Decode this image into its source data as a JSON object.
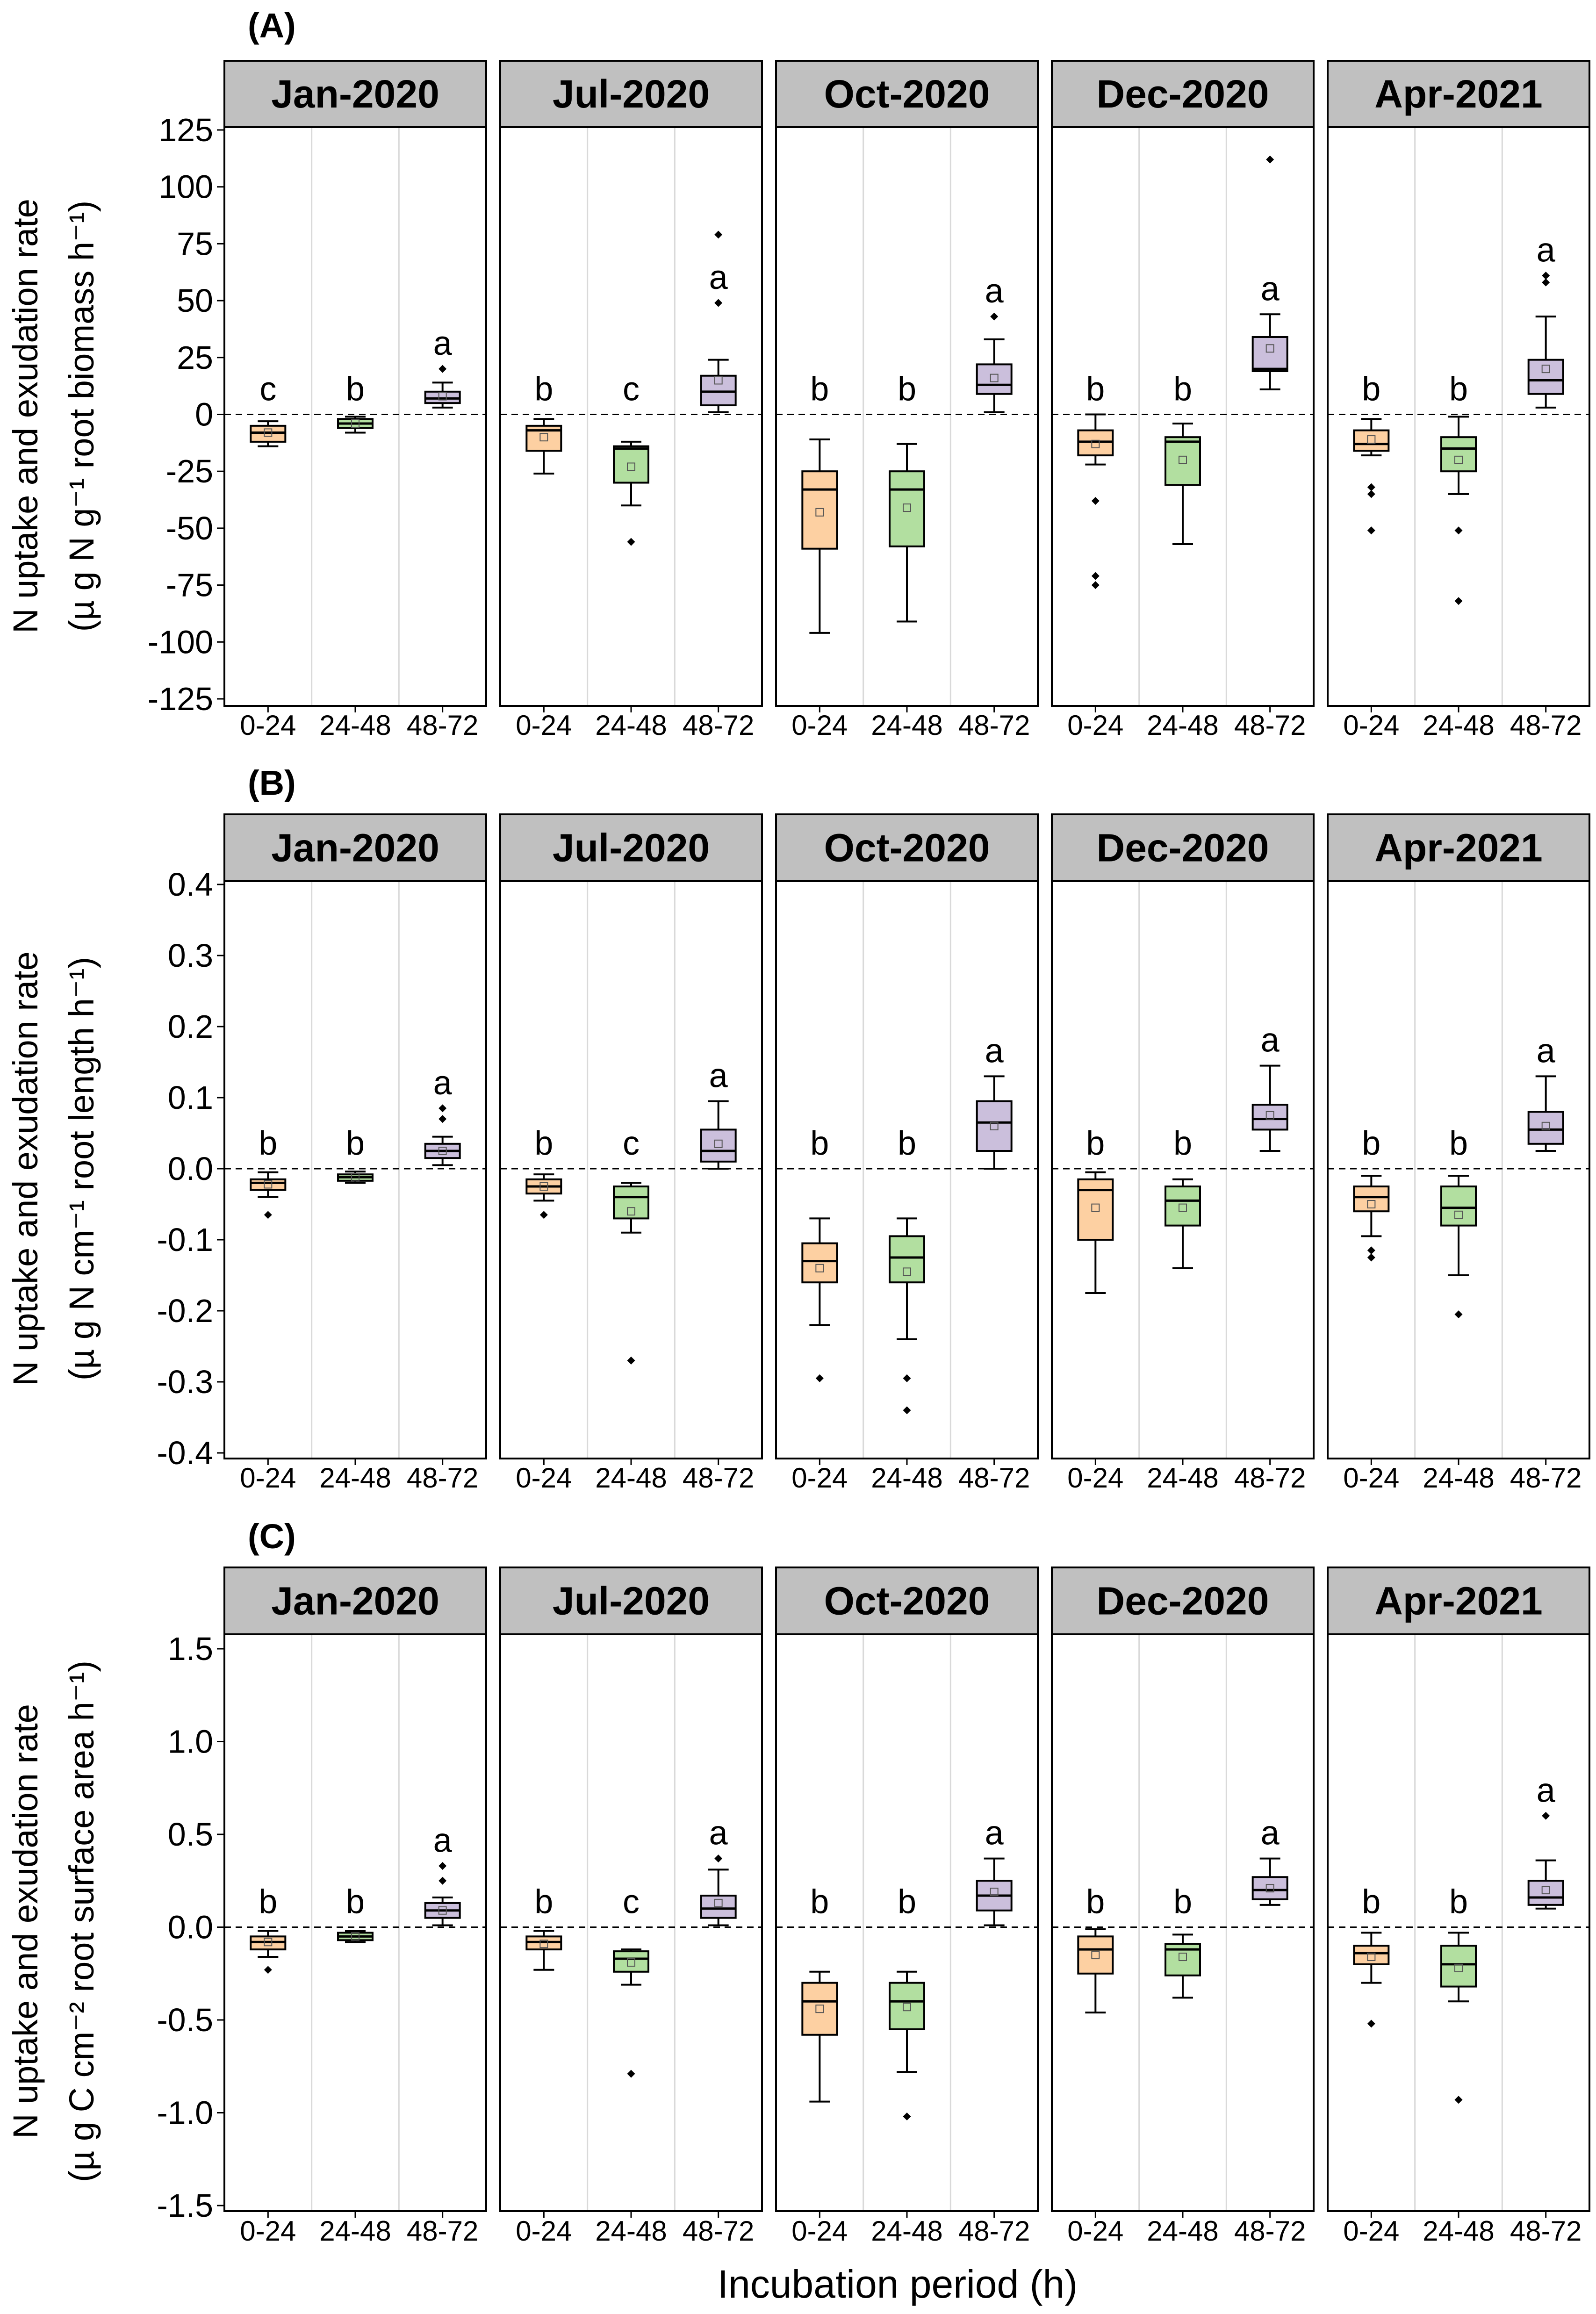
{
  "figure": {
    "x_axis_label": "Incubation period (h)",
    "colors": {
      "0-24": "#fdd0a2",
      "24-48": "#b2dfa0",
      "48-72": "#cbbfdc",
      "strip": "#c0c0c0"
    }
  },
  "chart_data": [
    {
      "type": "boxplot",
      "panel_label": "(A)",
      "ylabel_line1": "N uptake and exudation rate",
      "ylabel_line2": "(µ g N g⁻¹ root biomass h⁻¹)",
      "ylim": [
        -125,
        125
      ],
      "yticks": [
        125,
        100,
        75,
        50,
        25,
        0,
        -25,
        -50,
        -75,
        -100,
        -125
      ],
      "ytick_labels": [
        "125",
        "100",
        "75",
        "50",
        "25",
        "0",
        "-25",
        "-50",
        "-75",
        "-100",
        "-125"
      ],
      "categories": [
        "0-24",
        "24-48",
        "48-72"
      ],
      "facets": [
        {
          "name": "Jan-2020",
          "boxes": [
            {
              "category": "0-24",
              "whisker_low": -14,
              "q1": -12,
              "median": -8,
              "q3": -5,
              "whisker_high": -3,
              "mean": -8,
              "outliers": [],
              "letter": "c"
            },
            {
              "category": "24-48",
              "whisker_low": -8,
              "q1": -6,
              "median": -4,
              "q3": -2,
              "whisker_high": -1,
              "mean": -4,
              "outliers": [],
              "letter": "b"
            },
            {
              "category": "48-72",
              "whisker_low": 3,
              "q1": 5,
              "median": 7,
              "q3": 10,
              "whisker_high": 14,
              "mean": 8,
              "outliers": [
                20
              ],
              "letter": "a"
            }
          ]
        },
        {
          "name": "Jul-2020",
          "boxes": [
            {
              "category": "0-24",
              "whisker_low": -26,
              "q1": -16,
              "median": -7,
              "q3": -5,
              "whisker_high": -2,
              "mean": -10,
              "outliers": [],
              "letter": "b"
            },
            {
              "category": "24-48",
              "whisker_low": -40,
              "q1": -30,
              "median": -15,
              "q3": -14,
              "whisker_high": -12,
              "mean": -23,
              "outliers": [
                -56
              ],
              "letter": "c"
            },
            {
              "category": "48-72",
              "whisker_low": 1,
              "q1": 4,
              "median": 10,
              "q3": 17,
              "whisker_high": 24,
              "mean": 15,
              "outliers": [
                49,
                79
              ],
              "letter": "a"
            }
          ]
        },
        {
          "name": "Oct-2020",
          "boxes": [
            {
              "category": "0-24",
              "whisker_low": -96,
              "q1": -59,
              "median": -33,
              "q3": -25,
              "whisker_high": -11,
              "mean": -43,
              "outliers": [],
              "letter": "b"
            },
            {
              "category": "24-48",
              "whisker_low": -91,
              "q1": -58,
              "median": -33,
              "q3": -25,
              "whisker_high": -13,
              "mean": -41,
              "outliers": [],
              "letter": "b"
            },
            {
              "category": "48-72",
              "whisker_low": 1,
              "q1": 9,
              "median": 13,
              "q3": 22,
              "whisker_high": 33,
              "mean": 16,
              "outliers": [
                43
              ],
              "letter": "a"
            }
          ]
        },
        {
          "name": "Dec-2020",
          "boxes": [
            {
              "category": "0-24",
              "whisker_low": -22,
              "q1": -18,
              "median": -12,
              "q3": -7,
              "whisker_high": 0,
              "mean": -13,
              "outliers": [
                -38,
                -71,
                -75
              ],
              "letter": "b"
            },
            {
              "category": "24-48",
              "whisker_low": -57,
              "q1": -31,
              "median": -12,
              "q3": -10,
              "whisker_high": -4,
              "mean": -20,
              "outliers": [],
              "letter": "b"
            },
            {
              "category": "48-72",
              "whisker_low": 11,
              "q1": 19,
              "median": 20,
              "q3": 34,
              "whisker_high": 44,
              "mean": 29,
              "outliers": [
                112
              ],
              "letter": "a"
            }
          ]
        },
        {
          "name": "Apr-2021",
          "boxes": [
            {
              "category": "0-24",
              "whisker_low": -18,
              "q1": -16,
              "median": -13,
              "q3": -7,
              "whisker_high": -2,
              "mean": -11,
              "outliers": [
                -32,
                -35,
                -51
              ],
              "letter": "b"
            },
            {
              "category": "24-48",
              "whisker_low": -35,
              "q1": -25,
              "median": -15,
              "q3": -10,
              "whisker_high": -1,
              "mean": -20,
              "outliers": [
                -51,
                -82
              ],
              "letter": "b"
            },
            {
              "category": "48-72",
              "whisker_low": 3,
              "q1": 9,
              "median": 15,
              "q3": 24,
              "whisker_high": 43,
              "mean": 20,
              "outliers": [
                58,
                61
              ],
              "letter": "a"
            }
          ]
        }
      ]
    },
    {
      "type": "boxplot",
      "panel_label": "(B)",
      "ylabel_line1": "N uptake and exudation rate",
      "ylabel_line2": "(µ g N cm⁻¹ root length h⁻¹)",
      "ylim": [
        -0.4,
        0.4
      ],
      "yticks": [
        0.4,
        0.3,
        0.2,
        0.1,
        0.0,
        -0.1,
        -0.2,
        -0.3,
        -0.4
      ],
      "ytick_labels": [
        "0.4",
        "0.3",
        "0.2",
        "0.1",
        "0.0",
        "-0.1",
        "-0.2",
        "-0.3",
        "-0.4"
      ],
      "categories": [
        "0-24",
        "24-48",
        "48-72"
      ],
      "facets": [
        {
          "name": "Jan-2020",
          "boxes": [
            {
              "category": "0-24",
              "whisker_low": -0.04,
              "q1": -0.03,
              "median": -0.02,
              "q3": -0.015,
              "whisker_high": -0.005,
              "mean": -0.022,
              "outliers": [
                -0.065
              ],
              "letter": "b"
            },
            {
              "category": "24-48",
              "whisker_low": -0.02,
              "q1": -0.017,
              "median": -0.012,
              "q3": -0.008,
              "whisker_high": -0.004,
              "mean": -0.012,
              "outliers": [],
              "letter": "b"
            },
            {
              "category": "48-72",
              "whisker_low": 0.005,
              "q1": 0.015,
              "median": 0.025,
              "q3": 0.035,
              "whisker_high": 0.045,
              "mean": 0.025,
              "outliers": [
                0.07,
                0.085
              ],
              "letter": "a"
            }
          ]
        },
        {
          "name": "Jul-2020",
          "boxes": [
            {
              "category": "0-24",
              "whisker_low": -0.045,
              "q1": -0.035,
              "median": -0.025,
              "q3": -0.015,
              "whisker_high": -0.008,
              "mean": -0.025,
              "outliers": [
                -0.065
              ],
              "letter": "b"
            },
            {
              "category": "24-48",
              "whisker_low": -0.09,
              "q1": -0.07,
              "median": -0.04,
              "q3": -0.025,
              "whisker_high": -0.02,
              "mean": -0.06,
              "outliers": [
                -0.27
              ],
              "letter": "c"
            },
            {
              "category": "48-72",
              "whisker_low": 0.0,
              "q1": 0.01,
              "median": 0.025,
              "q3": 0.055,
              "whisker_high": 0.095,
              "mean": 0.035,
              "outliers": [],
              "letter": "a"
            }
          ]
        },
        {
          "name": "Oct-2020",
          "boxes": [
            {
              "category": "0-24",
              "whisker_low": -0.22,
              "q1": -0.16,
              "median": -0.13,
              "q3": -0.105,
              "whisker_high": -0.07,
              "mean": -0.14,
              "outliers": [
                -0.295
              ],
              "letter": "b"
            },
            {
              "category": "24-48",
              "whisker_low": -0.24,
              "q1": -0.16,
              "median": -0.125,
              "q3": -0.095,
              "whisker_high": -0.07,
              "mean": -0.145,
              "outliers": [
                -0.295,
                -0.34
              ],
              "letter": "b"
            },
            {
              "category": "48-72",
              "whisker_low": 0.0,
              "q1": 0.025,
              "median": 0.065,
              "q3": 0.095,
              "whisker_high": 0.13,
              "mean": 0.06,
              "outliers": [],
              "letter": "a"
            }
          ]
        },
        {
          "name": "Dec-2020",
          "boxes": [
            {
              "category": "0-24",
              "whisker_low": -0.175,
              "q1": -0.1,
              "median": -0.03,
              "q3": -0.015,
              "whisker_high": -0.005,
              "mean": -0.055,
              "outliers": [],
              "letter": "b"
            },
            {
              "category": "24-48",
              "whisker_low": -0.14,
              "q1": -0.08,
              "median": -0.045,
              "q3": -0.025,
              "whisker_high": -0.015,
              "mean": -0.055,
              "outliers": [],
              "letter": "b"
            },
            {
              "category": "48-72",
              "whisker_low": 0.025,
              "q1": 0.055,
              "median": 0.07,
              "q3": 0.09,
              "whisker_high": 0.145,
              "mean": 0.075,
              "outliers": [],
              "letter": "a"
            }
          ]
        },
        {
          "name": "Apr-2021",
          "boxes": [
            {
              "category": "0-24",
              "whisker_low": -0.095,
              "q1": -0.06,
              "median": -0.04,
              "q3": -0.025,
              "whisker_high": -0.01,
              "mean": -0.05,
              "outliers": [
                -0.115,
                -0.125
              ],
              "letter": "b"
            },
            {
              "category": "24-48",
              "whisker_low": -0.15,
              "q1": -0.08,
              "median": -0.055,
              "q3": -0.025,
              "whisker_high": -0.01,
              "mean": -0.065,
              "outliers": [
                -0.205
              ],
              "letter": "b"
            },
            {
              "category": "48-72",
              "whisker_low": 0.025,
              "q1": 0.035,
              "median": 0.055,
              "q3": 0.08,
              "whisker_high": 0.13,
              "mean": 0.06,
              "outliers": [],
              "letter": "a"
            }
          ]
        }
      ]
    },
    {
      "type": "boxplot",
      "panel_label": "(C)",
      "ylabel_line1": "N uptake and exudation rate",
      "ylabel_line2": "(µ g C cm⁻² root surface area h⁻¹)",
      "ylim": [
        -1.5,
        1.5
      ],
      "yticks": [
        1.5,
        1.0,
        0.5,
        0.0,
        -0.5,
        -1.0,
        -1.5
      ],
      "ytick_labels": [
        "1.5",
        "1.0",
        "0.5",
        "0.0",
        "-0.5",
        "-1.0",
        "-1.5"
      ],
      "categories": [
        "0-24",
        "24-48",
        "48-72"
      ],
      "facets": [
        {
          "name": "Jan-2020",
          "boxes": [
            {
              "category": "0-24",
              "whisker_low": -0.16,
              "q1": -0.12,
              "median": -0.08,
              "q3": -0.05,
              "whisker_high": -0.02,
              "mean": -0.08,
              "outliers": [
                -0.23
              ],
              "letter": "b"
            },
            {
              "category": "24-48",
              "whisker_low": -0.08,
              "q1": -0.07,
              "median": -0.05,
              "q3": -0.03,
              "whisker_high": -0.02,
              "mean": -0.05,
              "outliers": [],
              "letter": "b"
            },
            {
              "category": "48-72",
              "whisker_low": 0.01,
              "q1": 0.05,
              "median": 0.09,
              "q3": 0.13,
              "whisker_high": 0.16,
              "mean": 0.09,
              "outliers": [
                0.25,
                0.33
              ],
              "letter": "a"
            }
          ]
        },
        {
          "name": "Jul-2020",
          "boxes": [
            {
              "category": "0-24",
              "whisker_low": -0.23,
              "q1": -0.12,
              "median": -0.08,
              "q3": -0.05,
              "whisker_high": -0.02,
              "mean": -0.09,
              "outliers": [],
              "letter": "b"
            },
            {
              "category": "24-48",
              "whisker_low": -0.31,
              "q1": -0.24,
              "median": -0.17,
              "q3": -0.13,
              "whisker_high": -0.12,
              "mean": -0.19,
              "outliers": [
                -0.79
              ],
              "letter": "c"
            },
            {
              "category": "48-72",
              "whisker_low": 0.01,
              "q1": 0.05,
              "median": 0.1,
              "q3": 0.17,
              "whisker_high": 0.31,
              "mean": 0.13,
              "outliers": [
                0.37
              ],
              "letter": "a"
            }
          ]
        },
        {
          "name": "Oct-2020",
          "boxes": [
            {
              "category": "0-24",
              "whisker_low": -0.94,
              "q1": -0.58,
              "median": -0.4,
              "q3": -0.3,
              "whisker_high": -0.24,
              "mean": -0.44,
              "outliers": [],
              "letter": "b"
            },
            {
              "category": "24-48",
              "whisker_low": -0.78,
              "q1": -0.55,
              "median": -0.4,
              "q3": -0.3,
              "whisker_high": -0.24,
              "mean": -0.43,
              "outliers": [
                -1.02
              ],
              "letter": "b"
            },
            {
              "category": "48-72",
              "whisker_low": 0.01,
              "q1": 0.09,
              "median": 0.17,
              "q3": 0.25,
              "whisker_high": 0.37,
              "mean": 0.19,
              "outliers": [],
              "letter": "a"
            }
          ]
        },
        {
          "name": "Dec-2020",
          "boxes": [
            {
              "category": "0-24",
              "whisker_low": -0.46,
              "q1": -0.25,
              "median": -0.12,
              "q3": -0.05,
              "whisker_high": -0.01,
              "mean": -0.15,
              "outliers": [],
              "letter": "b"
            },
            {
              "category": "24-48",
              "whisker_low": -0.38,
              "q1": -0.26,
              "median": -0.12,
              "q3": -0.09,
              "whisker_high": -0.04,
              "mean": -0.16,
              "outliers": [],
              "letter": "b"
            },
            {
              "category": "48-72",
              "whisker_low": 0.12,
              "q1": 0.15,
              "median": 0.2,
              "q3": 0.27,
              "whisker_high": 0.37,
              "mean": 0.21,
              "outliers": [],
              "letter": "a"
            }
          ]
        },
        {
          "name": "Apr-2021",
          "boxes": [
            {
              "category": "0-24",
              "whisker_low": -0.3,
              "q1": -0.2,
              "median": -0.14,
              "q3": -0.1,
              "whisker_high": -0.03,
              "mean": -0.16,
              "outliers": [
                -0.52
              ],
              "letter": "b"
            },
            {
              "category": "24-48",
              "whisker_low": -0.4,
              "q1": -0.32,
              "median": -0.2,
              "q3": -0.1,
              "whisker_high": -0.03,
              "mean": -0.22,
              "outliers": [
                -0.93
              ],
              "letter": "b"
            },
            {
              "category": "48-72",
              "whisker_low": 0.1,
              "q1": 0.12,
              "median": 0.16,
              "q3": 0.25,
              "whisker_high": 0.36,
              "mean": 0.2,
              "outliers": [
                0.6
              ],
              "letter": "a"
            }
          ]
        }
      ]
    }
  ]
}
